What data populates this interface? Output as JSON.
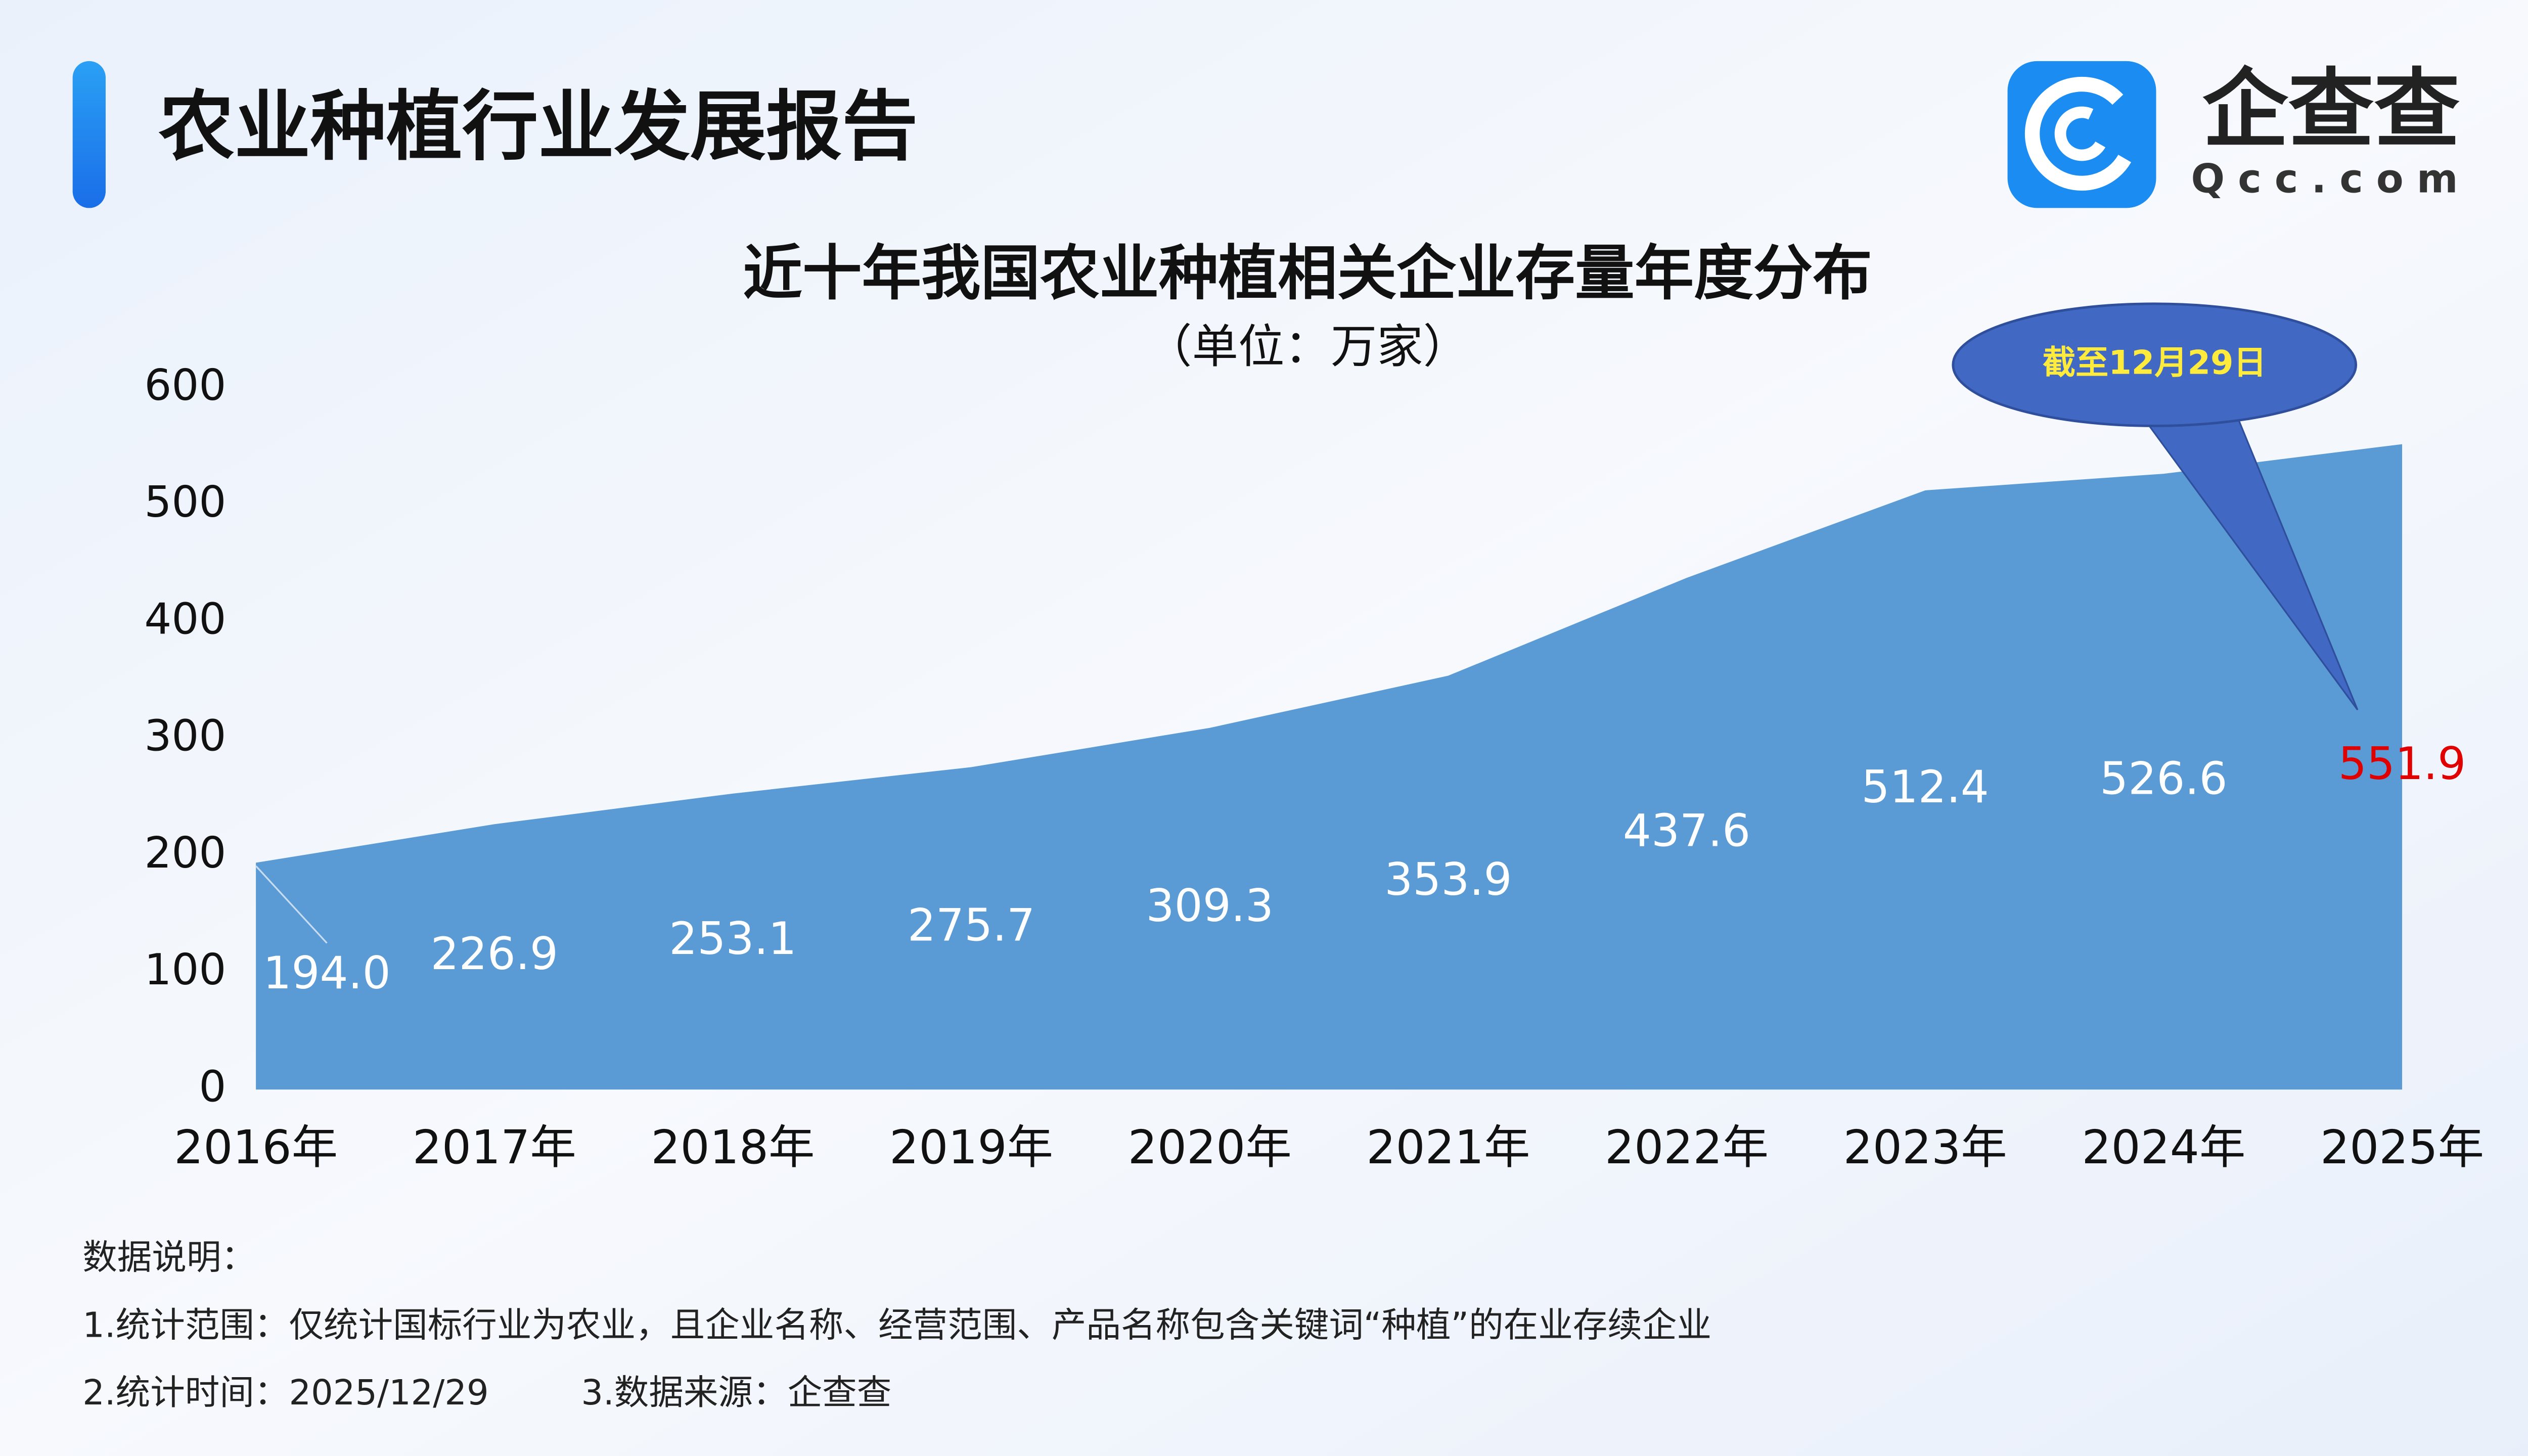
{
  "header": {
    "title": "农业种植行业发展报告",
    "logo_name": "企查查",
    "logo_url": "Qcc.com"
  },
  "chart_data": {
    "type": "area",
    "title": "近十年我国农业种植相关企业存量年度分布",
    "subtitle": "（单位：万家）",
    "categories": [
      "2016年",
      "2017年",
      "2018年",
      "2019年",
      "2020年",
      "2021年",
      "2022年",
      "2023年",
      "2024年",
      "2025年"
    ],
    "values": [
      194.0,
      226.9,
      253.1,
      275.7,
      309.3,
      353.9,
      437.6,
      512.4,
      526.6,
      551.9
    ],
    "value_labels": [
      "194.0",
      "226.9",
      "253.1",
      "275.7",
      "309.3",
      "353.9",
      "437.6",
      "512.4",
      "526.6",
      "551.9"
    ],
    "value_label_colors": [
      "#ffffff",
      "#ffffff",
      "#ffffff",
      "#ffffff",
      "#ffffff",
      "#ffffff",
      "#ffffff",
      "#ffffff",
      "#ffffff",
      "#e00000"
    ],
    "color": "#5b9bd5",
    "ylim": [
      0,
      600
    ],
    "yticks": [
      0,
      100,
      200,
      300,
      400,
      500,
      600
    ],
    "annotation": "截至12月29日"
  },
  "notes": {
    "heading": "数据说明：",
    "scope": "1.统计范围：仅统计国标行业为农业，且企业名称、经营范围、产品名称包含关键词“种植”的在业存续企业",
    "time": "2.统计时间：2025/12/29",
    "source": "3.数据来源：企查查"
  }
}
